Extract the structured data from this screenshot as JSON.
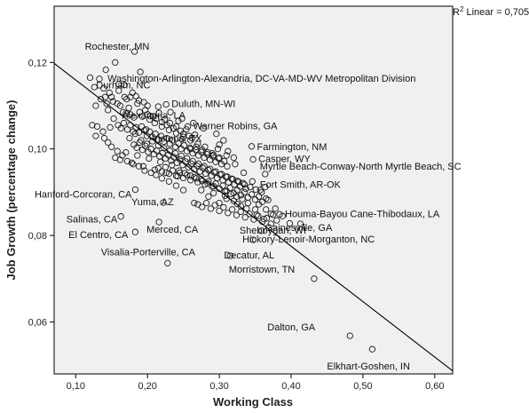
{
  "chart_data": {
    "type": "scatter",
    "xlabel": "Working Class",
    "ylabel": "Job Growth (percentage change)",
    "xlim": [
      0.07,
      0.625
    ],
    "ylim": [
      0.048,
      0.133
    ],
    "xticks": [
      0.1,
      0.2,
      0.3,
      0.4,
      0.5,
      0.6
    ],
    "xtick_labels": [
      "0,10",
      "0,20",
      "0,30",
      "0,40",
      "0,50",
      "0,60"
    ],
    "yticks": [
      0.06,
      0.08,
      0.1,
      0.12
    ],
    "ytick_labels": [
      "0,06",
      "0,08",
      "0,10",
      "0,12"
    ],
    "grid": false,
    "r2_text": {
      "prefix": "R",
      "sup": "2",
      "suffix": " Linear = 0,705"
    },
    "fit_line": {
      "x": [
        0.07,
        0.625
      ],
      "y": [
        0.1198,
        0.0487
      ]
    },
    "labeled_points": [
      {
        "label": "Rochester, MN",
        "x": 0.182,
        "y": 0.1225
      },
      {
        "label": "Washington-Arlington-Alexandria, DC-VA-MD-WV Metropolitan Division",
        "x": 0.19,
        "y": 0.1178
      },
      {
        "label": "Durham, NC",
        "x": 0.168,
        "y": 0.1148
      },
      {
        "label": "Duluth, MN-WI",
        "x": 0.226,
        "y": 0.1103
      },
      {
        "label": "Alexandria, LA",
        "x": 0.204,
        "y": 0.1076
      },
      {
        "label": "Warner Robins, GA",
        "x": 0.256,
        "y": 0.1052
      },
      {
        "label": "Victoria, TX",
        "x": 0.248,
        "y": 0.1023
      },
      {
        "label": "Farmington, NM",
        "x": 0.345,
        "y": 0.1006
      },
      {
        "label": "Casper, WY",
        "x": 0.347,
        "y": 0.0976
      },
      {
        "label": "Myrtle Beach-Conway-North Myrtle Beach, SC",
        "x": 0.364,
        "y": 0.0942
      },
      {
        "label": "Hanford-Corcoran, CA",
        "x": 0.183,
        "y": 0.0906
      },
      {
        "label": "Fort Smith, AR-OK",
        "x": 0.364,
        "y": 0.0912
      },
      {
        "label": "Yuma, AZ",
        "x": 0.222,
        "y": 0.0876
      },
      {
        "label": "Houma-Bayou Cane-Thibodaux, LA",
        "x": 0.384,
        "y": 0.0849
      },
      {
        "label": "Salinas, CA",
        "x": 0.163,
        "y": 0.0844
      },
      {
        "label": "Merced, CA",
        "x": 0.216,
        "y": 0.0831
      },
      {
        "label": "Sheboygan, WI",
        "x": 0.359,
        "y": 0.0811
      },
      {
        "label": "Gainesville, GA",
        "x": 0.413,
        "y": 0.0827
      },
      {
        "label": "El Centro, CA",
        "x": 0.183,
        "y": 0.0808
      },
      {
        "label": "Visalia-Porterville, CA",
        "x": 0.228,
        "y": 0.0736
      },
      {
        "label": "Hickory-Lenoir-Morganton, NC",
        "x": 0.347,
        "y": 0.079
      },
      {
        "label": "Decatur, AL",
        "x": 0.315,
        "y": 0.0753
      },
      {
        "label": "Morristown, TN",
        "x": 0.432,
        "y": 0.07
      },
      {
        "label": "Dalton, GA",
        "x": 0.482,
        "y": 0.0568
      },
      {
        "label": "Elkhart-Goshen, IN",
        "x": 0.513,
        "y": 0.0537
      }
    ],
    "cloud_points": [
      [
        0.12,
        0.1165
      ],
      [
        0.133,
        0.1162
      ],
      [
        0.142,
        0.1183
      ],
      [
        0.126,
        0.1143
      ],
      [
        0.139,
        0.114
      ],
      [
        0.147,
        0.113
      ],
      [
        0.155,
        0.12
      ],
      [
        0.16,
        0.115
      ],
      [
        0.135,
        0.1115
      ],
      [
        0.141,
        0.112
      ],
      [
        0.128,
        0.11
      ],
      [
        0.145,
        0.109
      ],
      [
        0.152,
        0.111
      ],
      [
        0.158,
        0.1105
      ],
      [
        0.162,
        0.11
      ],
      [
        0.168,
        0.112
      ],
      [
        0.171,
        0.1115
      ],
      [
        0.174,
        0.1095
      ],
      [
        0.179,
        0.113
      ],
      [
        0.184,
        0.1122
      ],
      [
        0.186,
        0.1105
      ],
      [
        0.166,
        0.1085
      ],
      [
        0.17,
        0.1082
      ],
      [
        0.176,
        0.108
      ],
      [
        0.181,
        0.1073
      ],
      [
        0.189,
        0.1085
      ],
      [
        0.193,
        0.1075
      ],
      [
        0.197,
        0.109
      ],
      [
        0.2,
        0.108
      ],
      [
        0.203,
        0.1068
      ],
      [
        0.208,
        0.1075
      ],
      [
        0.212,
        0.107
      ],
      [
        0.216,
        0.1083
      ],
      [
        0.22,
        0.1062
      ],
      [
        0.224,
        0.1068
      ],
      [
        0.227,
        0.1055
      ],
      [
        0.231,
        0.106
      ],
      [
        0.236,
        0.1048
      ],
      [
        0.24,
        0.1052
      ],
      [
        0.243,
        0.1065
      ],
      [
        0.246,
        0.1042
      ],
      [
        0.25,
        0.1035
      ],
      [
        0.254,
        0.1045
      ],
      [
        0.258,
        0.103
      ],
      [
        0.262,
        0.1025
      ],
      [
        0.266,
        0.1033
      ],
      [
        0.159,
        0.1055
      ],
      [
        0.163,
        0.1048
      ],
      [
        0.167,
        0.106
      ],
      [
        0.172,
        0.1045
      ],
      [
        0.176,
        0.1055
      ],
      [
        0.18,
        0.104
      ],
      [
        0.184,
        0.105
      ],
      [
        0.188,
        0.1038
      ],
      [
        0.192,
        0.1052
      ],
      [
        0.196,
        0.1043
      ],
      [
        0.199,
        0.103
      ],
      [
        0.203,
        0.104
      ],
      [
        0.207,
        0.1028
      ],
      [
        0.211,
        0.1035
      ],
      [
        0.215,
        0.1022
      ],
      [
        0.219,
        0.103
      ],
      [
        0.223,
        0.1017
      ],
      [
        0.227,
        0.1025
      ],
      [
        0.231,
        0.1012
      ],
      [
        0.235,
        0.102
      ],
      [
        0.239,
        0.1005
      ],
      [
        0.243,
        0.1013
      ],
      [
        0.247,
        0.1
      ],
      [
        0.251,
        0.1008
      ],
      [
        0.255,
        0.0995
      ],
      [
        0.259,
        0.1003
      ],
      [
        0.263,
        0.099
      ],
      [
        0.267,
        0.0998
      ],
      [
        0.271,
        0.0985
      ],
      [
        0.275,
        0.0993
      ],
      [
        0.279,
        0.098
      ],
      [
        0.283,
        0.0988
      ],
      [
        0.287,
        0.0975
      ],
      [
        0.291,
        0.0983
      ],
      [
        0.295,
        0.097
      ],
      [
        0.299,
        0.0978
      ],
      [
        0.303,
        0.0965
      ],
      [
        0.307,
        0.0972
      ],
      [
        0.311,
        0.096
      ],
      [
        0.181,
        0.101
      ],
      [
        0.185,
        0.1003
      ],
      [
        0.189,
        0.1015
      ],
      [
        0.193,
        0.0998
      ],
      [
        0.197,
        0.1007
      ],
      [
        0.201,
        0.0993
      ],
      [
        0.205,
        0.1
      ],
      [
        0.209,
        0.0988
      ],
      [
        0.213,
        0.0996
      ],
      [
        0.217,
        0.0983
      ],
      [
        0.221,
        0.0991
      ],
      [
        0.225,
        0.0978
      ],
      [
        0.229,
        0.0986
      ],
      [
        0.233,
        0.0973
      ],
      [
        0.237,
        0.0981
      ],
      [
        0.241,
        0.0968
      ],
      [
        0.245,
        0.0976
      ],
      [
        0.249,
        0.0963
      ],
      [
        0.253,
        0.0971
      ],
      [
        0.257,
        0.0958
      ],
      [
        0.261,
        0.0966
      ],
      [
        0.265,
        0.0953
      ],
      [
        0.269,
        0.0961
      ],
      [
        0.273,
        0.0948
      ],
      [
        0.277,
        0.0956
      ],
      [
        0.281,
        0.0943
      ],
      [
        0.285,
        0.0951
      ],
      [
        0.289,
        0.0938
      ],
      [
        0.293,
        0.0946
      ],
      [
        0.297,
        0.0933
      ],
      [
        0.301,
        0.0941
      ],
      [
        0.305,
        0.0928
      ],
      [
        0.309,
        0.0936
      ],
      [
        0.313,
        0.0923
      ],
      [
        0.317,
        0.0931
      ],
      [
        0.321,
        0.0918
      ],
      [
        0.325,
        0.0926
      ],
      [
        0.329,
        0.0913
      ],
      [
        0.333,
        0.0921
      ],
      [
        0.337,
        0.0908
      ],
      [
        0.215,
        0.0955
      ],
      [
        0.22,
        0.0948
      ],
      [
        0.225,
        0.0958
      ],
      [
        0.23,
        0.0943
      ],
      [
        0.235,
        0.095
      ],
      [
        0.24,
        0.0938
      ],
      [
        0.245,
        0.0945
      ],
      [
        0.25,
        0.0933
      ],
      [
        0.255,
        0.094
      ],
      [
        0.26,
        0.0928
      ],
      [
        0.265,
        0.0935
      ],
      [
        0.27,
        0.0923
      ],
      [
        0.275,
        0.093
      ],
      [
        0.28,
        0.0918
      ],
      [
        0.285,
        0.0925
      ],
      [
        0.29,
        0.0913
      ],
      [
        0.295,
        0.092
      ],
      [
        0.3,
        0.0908
      ],
      [
        0.305,
        0.0915
      ],
      [
        0.31,
        0.0903
      ],
      [
        0.315,
        0.091
      ],
      [
        0.32,
        0.0898
      ],
      [
        0.325,
        0.0905
      ],
      [
        0.33,
        0.0893
      ],
      [
        0.335,
        0.09
      ],
      [
        0.34,
        0.0888
      ],
      [
        0.345,
        0.0895
      ],
      [
        0.35,
        0.0883
      ],
      [
        0.355,
        0.089
      ],
      [
        0.36,
        0.0878
      ],
      [
        0.365,
        0.0885
      ],
      [
        0.27,
        0.0872
      ],
      [
        0.276,
        0.0866
      ],
      [
        0.282,
        0.0875
      ],
      [
        0.288,
        0.0862
      ],
      [
        0.294,
        0.087
      ],
      [
        0.3,
        0.0857
      ],
      [
        0.306,
        0.0865
      ],
      [
        0.312,
        0.0852
      ],
      [
        0.318,
        0.086
      ],
      [
        0.324,
        0.0847
      ],
      [
        0.33,
        0.0855
      ],
      [
        0.336,
        0.0842
      ],
      [
        0.342,
        0.085
      ],
      [
        0.348,
        0.0837
      ],
      [
        0.354,
        0.0845
      ],
      [
        0.36,
        0.0832
      ],
      [
        0.366,
        0.084
      ],
      [
        0.372,
        0.0827
      ],
      [
        0.155,
        0.098
      ],
      [
        0.162,
        0.0975
      ],
      [
        0.17,
        0.0992
      ],
      [
        0.178,
        0.0968
      ],
      [
        0.186,
        0.0985
      ],
      [
        0.194,
        0.096
      ],
      [
        0.202,
        0.0978
      ],
      [
        0.21,
        0.0952
      ],
      [
        0.218,
        0.097
      ],
      [
        0.226,
        0.0945
      ],
      [
        0.234,
        0.0963
      ],
      [
        0.242,
        0.0937
      ],
      [
        0.175,
        0.1025
      ],
      [
        0.183,
        0.1035
      ],
      [
        0.191,
        0.102
      ],
      [
        0.199,
        0.1012
      ],
      [
        0.207,
        0.1018
      ],
      [
        0.215,
        0.1008
      ],
      [
        0.223,
        0.1002
      ],
      [
        0.231,
        0.0996
      ],
      [
        0.239,
        0.099
      ],
      [
        0.247,
        0.0984
      ],
      [
        0.255,
        0.0978
      ],
      [
        0.263,
        0.0972
      ],
      [
        0.271,
        0.0966
      ],
      [
        0.279,
        0.096
      ],
      [
        0.287,
        0.0954
      ],
      [
        0.295,
        0.0948
      ],
      [
        0.303,
        0.0942
      ],
      [
        0.311,
        0.0936
      ],
      [
        0.319,
        0.093
      ],
      [
        0.327,
        0.0924
      ],
      [
        0.335,
        0.0918
      ],
      [
        0.343,
        0.0912
      ],
      [
        0.351,
        0.0906
      ],
      [
        0.359,
        0.09
      ],
      [
        0.29,
        0.099
      ],
      [
        0.298,
        0.1
      ],
      [
        0.306,
        0.102
      ],
      [
        0.312,
        0.0995
      ],
      [
        0.32,
        0.098
      ],
      [
        0.28,
        0.1005
      ],
      [
        0.27,
        0.1012
      ],
      [
        0.26,
        0.102
      ],
      [
        0.25,
        0.1028
      ],
      [
        0.24,
        0.1036
      ],
      [
        0.23,
        0.1044
      ],
      [
        0.22,
        0.1052
      ],
      [
        0.21,
        0.106
      ],
      [
        0.2,
        0.11
      ],
      [
        0.195,
        0.1108
      ],
      [
        0.188,
        0.1112
      ],
      [
        0.176,
        0.112
      ],
      [
        0.198,
        0.1045
      ],
      [
        0.215,
        0.1098
      ],
      [
        0.232,
        0.1085
      ],
      [
        0.248,
        0.107
      ],
      [
        0.264,
        0.106
      ],
      [
        0.278,
        0.1048
      ],
      [
        0.296,
        0.1035
      ],
      [
        0.3,
        0.101
      ],
      [
        0.31,
        0.0985
      ],
      [
        0.322,
        0.0965
      ],
      [
        0.334,
        0.0945
      ],
      [
        0.346,
        0.0925
      ],
      [
        0.357,
        0.0905
      ],
      [
        0.368,
        0.0882
      ],
      [
        0.378,
        0.0862
      ],
      [
        0.388,
        0.0845
      ],
      [
        0.398,
        0.0828
      ],
      [
        0.365,
        0.086
      ],
      [
        0.375,
        0.0848
      ],
      [
        0.355,
        0.0872
      ],
      [
        0.35,
        0.086
      ],
      [
        0.34,
        0.0875
      ],
      [
        0.33,
        0.0868
      ],
      [
        0.32,
        0.088
      ],
      [
        0.31,
        0.0885
      ],
      [
        0.25,
        0.0905
      ],
      [
        0.24,
        0.0915
      ],
      [
        0.23,
        0.0925
      ],
      [
        0.22,
        0.0932
      ],
      [
        0.212,
        0.094
      ],
      [
        0.205,
        0.0945
      ],
      [
        0.196,
        0.095
      ],
      [
        0.188,
        0.096
      ],
      [
        0.18,
        0.0965
      ],
      [
        0.172,
        0.0972
      ],
      [
        0.165,
        0.0985
      ],
      [
        0.158,
        0.0995
      ],
      [
        0.15,
        0.1005
      ],
      [
        0.145,
        0.1015
      ],
      [
        0.14,
        0.1025
      ],
      [
        0.138,
        0.104
      ],
      [
        0.148,
        0.105
      ],
      [
        0.153,
        0.107
      ],
      [
        0.123,
        0.1055
      ],
      [
        0.13,
        0.1052
      ],
      [
        0.128,
        0.103
      ],
      [
        0.16,
        0.1135
      ],
      [
        0.15,
        0.112
      ],
      [
        0.143,
        0.1105
      ],
      [
        0.265,
        0.0875
      ],
      [
        0.285,
        0.089
      ],
      [
        0.3,
        0.0875
      ],
      [
        0.275,
        0.0905
      ],
      [
        0.292,
        0.0898
      ],
      [
        0.308,
        0.0892
      ],
      [
        0.325,
        0.0873
      ],
      [
        0.338,
        0.0862
      ],
      [
        0.352,
        0.0848
      ],
      [
        0.362,
        0.0838
      ],
      [
        0.372,
        0.085
      ],
      [
        0.38,
        0.0835
      ],
      [
        0.26,
        0.1
      ],
      [
        0.268,
        0.1005
      ],
      [
        0.276,
        0.0998
      ],
      [
        0.284,
        0.0992
      ],
      [
        0.292,
        0.0986
      ],
      [
        0.3,
        0.098
      ],
      [
        0.244,
        0.095
      ],
      [
        0.252,
        0.0944
      ],
      [
        0.26,
        0.0938
      ],
      [
        0.268,
        0.0932
      ],
      [
        0.276,
        0.0926
      ],
      [
        0.284,
        0.092
      ],
      [
        0.292,
        0.0914
      ],
      [
        0.3,
        0.0908
      ],
      [
        0.308,
        0.0902
      ],
      [
        0.316,
        0.0896
      ],
      [
        0.324,
        0.089
      ],
      [
        0.332,
        0.0884
      ]
    ]
  }
}
